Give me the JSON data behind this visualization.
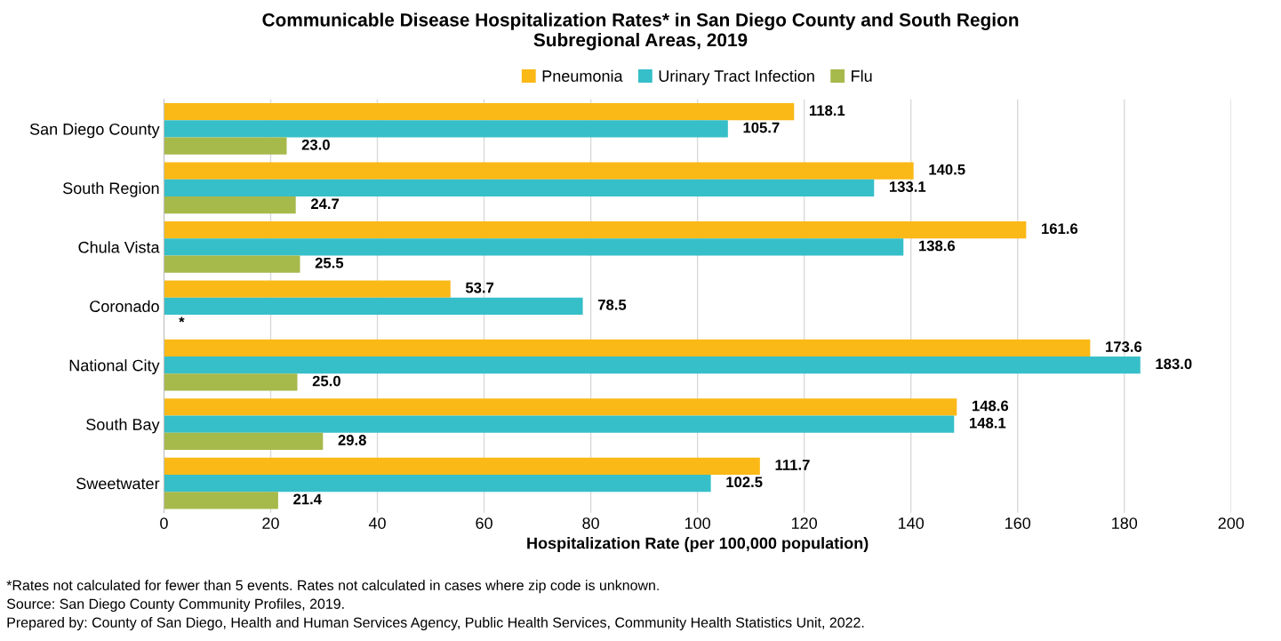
{
  "chart_data": {
    "type": "bar",
    "orientation": "horizontal",
    "title": "Communicable Disease Hospitalization Rates* in San Diego County and South Region\nSubregional Areas, 2019",
    "xlabel": "Hospitalization Rate (per 100,000 population)",
    "categories": [
      "San Diego County",
      "South Region",
      "Chula Vista",
      "Coronado",
      "National City",
      "South Bay",
      "Sweetwater"
    ],
    "series": [
      {
        "name": "Pneumonia",
        "color": "#fbb917",
        "values": [
          118.1,
          140.5,
          161.6,
          53.7,
          173.6,
          148.6,
          111.7
        ],
        "value_labels": [
          "118.1",
          "140.5",
          "161.6",
          "53.7",
          "173.6",
          "148.6",
          "111.7"
        ]
      },
      {
        "name": "Urinary Tract Infection",
        "color": "#36bfc9",
        "values": [
          105.7,
          133.1,
          138.6,
          78.5,
          183.0,
          148.1,
          102.5
        ],
        "value_labels": [
          "105.7",
          "133.1",
          "138.6",
          "78.5",
          "183.0",
          "148.1",
          "102.5"
        ]
      },
      {
        "name": "Flu",
        "color": "#a6b94b",
        "values": [
          23.0,
          24.7,
          25.5,
          null,
          25.0,
          29.8,
          21.4
        ],
        "value_labels": [
          "23.0",
          "24.7",
          "25.5",
          "*",
          "25.0",
          "29.8",
          "21.4"
        ]
      }
    ],
    "xlim": [
      0,
      200
    ],
    "xticks": [
      0,
      20,
      40,
      60,
      80,
      100,
      120,
      140,
      160,
      180,
      200
    ],
    "grid": "x",
    "legend": "top",
    "annotations": [
      "*Rates not calculated for fewer than 5 events. Rates not calculated in cases where zip code is unknown.",
      "Source: San Diego County Community Profiles, 2019.",
      "Prepared by: County of San Diego, Health and Human Services Agency, Public Health Services, Community Health Statistics Unit, 2022."
    ]
  }
}
